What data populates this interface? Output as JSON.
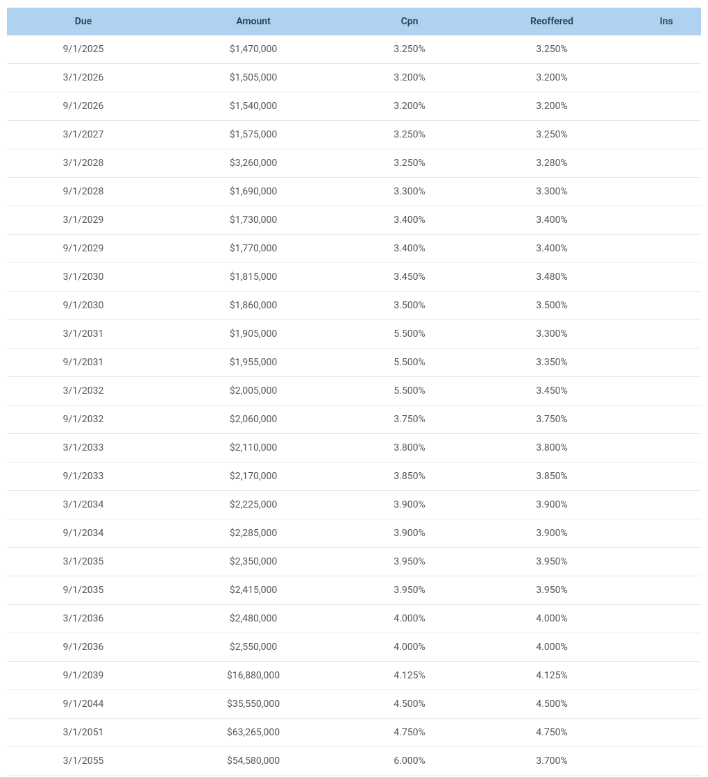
{
  "table": {
    "header_bg_color": "#aed2ef",
    "header_text_color": "#2c3e50",
    "row_text_color": "#53565a",
    "border_color": "#e8e8e8",
    "font_size": 14,
    "columns": [
      {
        "key": "due",
        "label": "Due",
        "width": "22%"
      },
      {
        "key": "amount",
        "label": "Amount",
        "width": "27%"
      },
      {
        "key": "cpn",
        "label": "Cpn",
        "width": "18%"
      },
      {
        "key": "reoffered",
        "label": "Reoffered",
        "width": "23%"
      },
      {
        "key": "ins",
        "label": "Ins",
        "width": "10%"
      }
    ],
    "rows": [
      {
        "due": "9/1/2025",
        "amount": "$1,470,000",
        "cpn": "3.250%",
        "reoffered": "3.250%",
        "ins": ""
      },
      {
        "due": "3/1/2026",
        "amount": "$1,505,000",
        "cpn": "3.200%",
        "reoffered": "3.200%",
        "ins": ""
      },
      {
        "due": "9/1/2026",
        "amount": "$1,540,000",
        "cpn": "3.200%",
        "reoffered": "3.200%",
        "ins": ""
      },
      {
        "due": "3/1/2027",
        "amount": "$1,575,000",
        "cpn": "3.250%",
        "reoffered": "3.250%",
        "ins": ""
      },
      {
        "due": "3/1/2028",
        "amount": "$3,260,000",
        "cpn": "3.250%",
        "reoffered": "3.280%",
        "ins": ""
      },
      {
        "due": "9/1/2028",
        "amount": "$1,690,000",
        "cpn": "3.300%",
        "reoffered": "3.300%",
        "ins": ""
      },
      {
        "due": "3/1/2029",
        "amount": "$1,730,000",
        "cpn": "3.400%",
        "reoffered": "3.400%",
        "ins": ""
      },
      {
        "due": "9/1/2029",
        "amount": "$1,770,000",
        "cpn": "3.400%",
        "reoffered": "3.400%",
        "ins": ""
      },
      {
        "due": "3/1/2030",
        "amount": "$1,815,000",
        "cpn": "3.450%",
        "reoffered": "3.480%",
        "ins": ""
      },
      {
        "due": "9/1/2030",
        "amount": "$1,860,000",
        "cpn": "3.500%",
        "reoffered": "3.500%",
        "ins": ""
      },
      {
        "due": "3/1/2031",
        "amount": "$1,905,000",
        "cpn": "5.500%",
        "reoffered": "3.300%",
        "ins": ""
      },
      {
        "due": "9/1/2031",
        "amount": "$1,955,000",
        "cpn": "5.500%",
        "reoffered": "3.350%",
        "ins": ""
      },
      {
        "due": "3/1/2032",
        "amount": "$2,005,000",
        "cpn": "5.500%",
        "reoffered": "3.450%",
        "ins": ""
      },
      {
        "due": "9/1/2032",
        "amount": "$2,060,000",
        "cpn": "3.750%",
        "reoffered": "3.750%",
        "ins": ""
      },
      {
        "due": "3/1/2033",
        "amount": "$2,110,000",
        "cpn": "3.800%",
        "reoffered": "3.800%",
        "ins": ""
      },
      {
        "due": "9/1/2033",
        "amount": "$2,170,000",
        "cpn": "3.850%",
        "reoffered": "3.850%",
        "ins": ""
      },
      {
        "due": "3/1/2034",
        "amount": "$2,225,000",
        "cpn": "3.900%",
        "reoffered": "3.900%",
        "ins": ""
      },
      {
        "due": "9/1/2034",
        "amount": "$2,285,000",
        "cpn": "3.900%",
        "reoffered": "3.900%",
        "ins": ""
      },
      {
        "due": "3/1/2035",
        "amount": "$2,350,000",
        "cpn": "3.950%",
        "reoffered": "3.950%",
        "ins": ""
      },
      {
        "due": "9/1/2035",
        "amount": "$2,415,000",
        "cpn": "3.950%",
        "reoffered": "3.950%",
        "ins": ""
      },
      {
        "due": "3/1/2036",
        "amount": "$2,480,000",
        "cpn": "4.000%",
        "reoffered": "4.000%",
        "ins": ""
      },
      {
        "due": "9/1/2036",
        "amount": "$2,550,000",
        "cpn": "4.000%",
        "reoffered": "4.000%",
        "ins": ""
      },
      {
        "due": "9/1/2039",
        "amount": "$16,880,000",
        "cpn": "4.125%",
        "reoffered": "4.125%",
        "ins": ""
      },
      {
        "due": "9/1/2044",
        "amount": "$35,550,000",
        "cpn": "4.500%",
        "reoffered": "4.500%",
        "ins": ""
      },
      {
        "due": "3/1/2051",
        "amount": "$63,265,000",
        "cpn": "4.750%",
        "reoffered": "4.750%",
        "ins": ""
      },
      {
        "due": "3/1/2055",
        "amount": "$54,580,000",
        "cpn": "6.000%",
        "reoffered": "3.700%",
        "ins": ""
      }
    ]
  }
}
